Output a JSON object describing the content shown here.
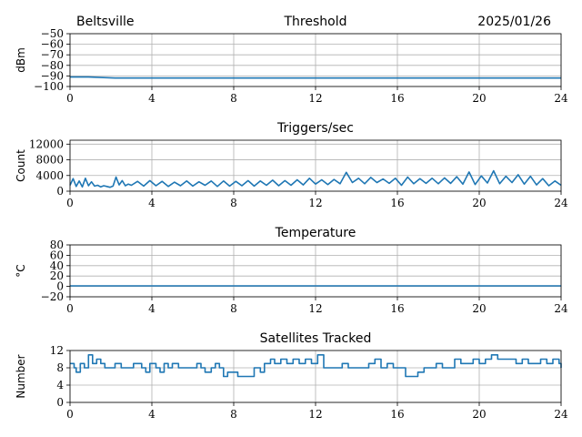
{
  "header": {
    "station": "Beltsville",
    "date": "2025/01/26"
  },
  "colors": {
    "series": "#1f77b4"
  },
  "chart_data": [
    {
      "type": "line",
      "title": "Threshold",
      "ylabel": "dBm",
      "xlim": [
        0,
        24
      ],
      "xticks": [
        0,
        4,
        8,
        12,
        16,
        20,
        24
      ],
      "ylim": [
        -100,
        -50
      ],
      "yticks": [
        -100,
        -90,
        -80,
        -70,
        -60,
        -50
      ],
      "ytick_labels": [
        "−100",
        "−90",
        "−80",
        "−70",
        "−60",
        "−50"
      ],
      "grid": true,
      "series": [
        {
          "x": [
            0,
            0.9,
            2.2,
            6,
            10,
            14,
            18,
            22.3,
            24
          ],
          "y": [
            -91,
            -91,
            -92,
            -92,
            -92,
            -92,
            -92,
            -92,
            -92
          ]
        }
      ]
    },
    {
      "type": "line",
      "title": "Triggers/sec",
      "ylabel": "Count",
      "xlim": [
        0,
        24
      ],
      "xticks": [
        0,
        4,
        8,
        12,
        16,
        20,
        24
      ],
      "ylim": [
        0,
        13000
      ],
      "yticks": [
        0,
        4000,
        8000,
        12000
      ],
      "ytick_labels": [
        "0",
        "4000",
        "8000",
        "12000"
      ],
      "grid": true,
      "series": [
        {
          "x": [
            0,
            0.15,
            0.3,
            0.45,
            0.6,
            0.75,
            0.9,
            1.05,
            1.2,
            1.35,
            1.5,
            1.65,
            1.8,
            1.95,
            2.1,
            2.25,
            2.4,
            2.55,
            2.7,
            2.85,
            3,
            3.3,
            3.6,
            3.9,
            4.2,
            4.5,
            4.8,
            5.1,
            5.4,
            5.7,
            6,
            6.3,
            6.6,
            6.9,
            7.2,
            7.5,
            7.8,
            8.1,
            8.4,
            8.7,
            9,
            9.3,
            9.6,
            9.9,
            10.2,
            10.5,
            10.8,
            11.1,
            11.4,
            11.7,
            12,
            12.3,
            12.6,
            12.9,
            13.2,
            13.5,
            13.8,
            14.1,
            14.4,
            14.7,
            15,
            15.3,
            15.6,
            15.9,
            16.2,
            16.5,
            16.8,
            17.1,
            17.4,
            17.7,
            18,
            18.3,
            18.6,
            18.9,
            19.2,
            19.5,
            19.8,
            20.1,
            20.4,
            20.7,
            21,
            21.3,
            21.6,
            21.9,
            22.2,
            22.5,
            22.8,
            23.1,
            23.4,
            23.7,
            24
          ],
          "y": [
            1500,
            3200,
            1200,
            2600,
            1100,
            3300,
            1400,
            2400,
            1300,
            1500,
            1100,
            1400,
            1200,
            1000,
            1300,
            3600,
            1600,
            2700,
            1400,
            1800,
            1500,
            2500,
            1300,
            2700,
            1400,
            2500,
            1200,
            2300,
            1400,
            2600,
            1300,
            2400,
            1500,
            2600,
            1200,
            2600,
            1300,
            2500,
            1400,
            2700,
            1300,
            2600,
            1500,
            2800,
            1400,
            2700,
            1500,
            2900,
            1600,
            3300,
            1800,
            2900,
            1700,
            3000,
            1900,
            4800,
            2200,
            3300,
            1900,
            3500,
            2200,
            3100,
            2000,
            3300,
            1500,
            3600,
            1900,
            3200,
            2000,
            3300,
            1900,
            3400,
            2000,
            3700,
            1800,
            4900,
            1700,
            3900,
            2100,
            5200,
            1900,
            3800,
            2200,
            4200,
            1800,
            3800,
            1600,
            3200,
            1400,
            2600,
            1500
          ]
        }
      ]
    },
    {
      "type": "line",
      "title": "Temperature",
      "ylabel": "°C",
      "xlim": [
        0,
        24
      ],
      "xticks": [
        0,
        4,
        8,
        12,
        16,
        20,
        24
      ],
      "ylim": [
        -20,
        80
      ],
      "yticks": [
        -20,
        0,
        20,
        40,
        60,
        80
      ],
      "ytick_labels": [
        "−20",
        "0",
        "20",
        "40",
        "60",
        "80"
      ],
      "grid": true,
      "series": [
        {
          "x": [
            0,
            24
          ],
          "y": [
            1,
            1
          ]
        }
      ]
    },
    {
      "type": "line",
      "title": "Satellites Tracked",
      "ylabel": "Number",
      "xlim": [
        0,
        24
      ],
      "xticks": [
        0,
        4,
        8,
        12,
        16,
        20,
        24
      ],
      "ylim": [
        0,
        12
      ],
      "yticks": [
        0,
        4,
        8,
        12
      ],
      "ytick_labels": [
        "0",
        "4",
        "8",
        "12"
      ],
      "grid": true,
      "step": true,
      "series": [
        {
          "x": [
            0,
            0.2,
            0.3,
            0.5,
            0.7,
            0.9,
            1.1,
            1.3,
            1.5,
            1.7,
            2.0,
            2.2,
            2.5,
            2.8,
            3.1,
            3.3,
            3.5,
            3.7,
            3.9,
            4.2,
            4.4,
            4.6,
            4.8,
            5.0,
            5.3,
            5.6,
            5.9,
            6.2,
            6.4,
            6.6,
            6.9,
            7.1,
            7.3,
            7.5,
            7.7,
            7.9,
            8.2,
            8.5,
            8.8,
            9.0,
            9.3,
            9.5,
            9.8,
            10.0,
            10.3,
            10.6,
            10.9,
            11.2,
            11.5,
            11.8,
            12.1,
            12.4,
            12.7,
            13.0,
            13.3,
            13.6,
            14.0,
            14.3,
            14.6,
            14.9,
            15.2,
            15.5,
            15.8,
            16.1,
            16.4,
            16.7,
            17.0,
            17.3,
            17.6,
            17.9,
            18.2,
            18.5,
            18.8,
            19.1,
            19.4,
            19.7,
            20.0,
            20.3,
            20.6,
            20.9,
            21.2,
            21.5,
            21.8,
            22.1,
            22.4,
            22.7,
            23.0,
            23.3,
            23.6,
            23.9,
            24
          ],
          "y": [
            9,
            8,
            7,
            9,
            8,
            11,
            9,
            10,
            9,
            8,
            8,
            9,
            8,
            8,
            9,
            9,
            8,
            7,
            9,
            8,
            7,
            9,
            8,
            9,
            8,
            8,
            8,
            9,
            8,
            7,
            8,
            9,
            8,
            6,
            7,
            7,
            6,
            6,
            6,
            8,
            7,
            9,
            10,
            9,
            10,
            9,
            10,
            9,
            10,
            9,
            11,
            8,
            8,
            8,
            9,
            8,
            8,
            8,
            9,
            10,
            8,
            9,
            8,
            8,
            6,
            6,
            7,
            8,
            8,
            9,
            8,
            8,
            10,
            9,
            9,
            10,
            9,
            10,
            11,
            10,
            10,
            10,
            9,
            10,
            9,
            9,
            10,
            9,
            10,
            9,
            8
          ]
        }
      ]
    }
  ]
}
